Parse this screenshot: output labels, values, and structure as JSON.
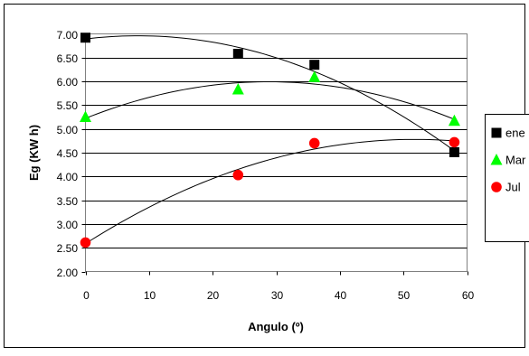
{
  "chart_data": {
    "type": "scatter",
    "xlabel": "Angulo (º)",
    "ylabel": "Eg (KW h)",
    "xlim": [
      0,
      60
    ],
    "ylim": [
      2.0,
      7.0
    ],
    "x_ticks": [
      {
        "value": 0,
        "label": "0"
      },
      {
        "value": 10,
        "label": "10"
      },
      {
        "value": 20,
        "label": "20"
      },
      {
        "value": 30,
        "label": "30"
      },
      {
        "value": 40,
        "label": "40"
      },
      {
        "value": 50,
        "label": "50"
      },
      {
        "value": 60,
        "label": "60"
      }
    ],
    "y_ticks": [
      {
        "value": 2.0,
        "label": "2.00"
      },
      {
        "value": 2.5,
        "label": "2.50"
      },
      {
        "value": 3.0,
        "label": "3.00"
      },
      {
        "value": 3.5,
        "label": "3.50"
      },
      {
        "value": 4.0,
        "label": "4.00"
      },
      {
        "value": 4.5,
        "label": "4.50"
      },
      {
        "value": 5.0,
        "label": "5.00"
      },
      {
        "value": 5.5,
        "label": "5.50"
      },
      {
        "value": 6.0,
        "label": "6.00"
      },
      {
        "value": 6.5,
        "label": "6.50"
      },
      {
        "value": 7.0,
        "label": "7.00"
      }
    ],
    "grid": "horizontal",
    "legend_position": "right",
    "trendlines": "polynomial",
    "series": [
      {
        "name": "ene",
        "marker": "square",
        "color": "#000000",
        "x": [
          0,
          24,
          36,
          58
        ],
        "y": [
          6.92,
          6.58,
          6.35,
          4.51
        ]
      },
      {
        "name": "Mar",
        "marker": "triangle",
        "color": "#00ff00",
        "x": [
          0,
          24,
          36,
          58
        ],
        "y": [
          5.25,
          5.83,
          6.09,
          5.17
        ]
      },
      {
        "name": "Jul",
        "marker": "circle",
        "color": "#ff0000",
        "x": [
          0,
          24,
          36,
          58
        ],
        "y": [
          2.61,
          4.03,
          4.7,
          4.72
        ]
      }
    ]
  }
}
